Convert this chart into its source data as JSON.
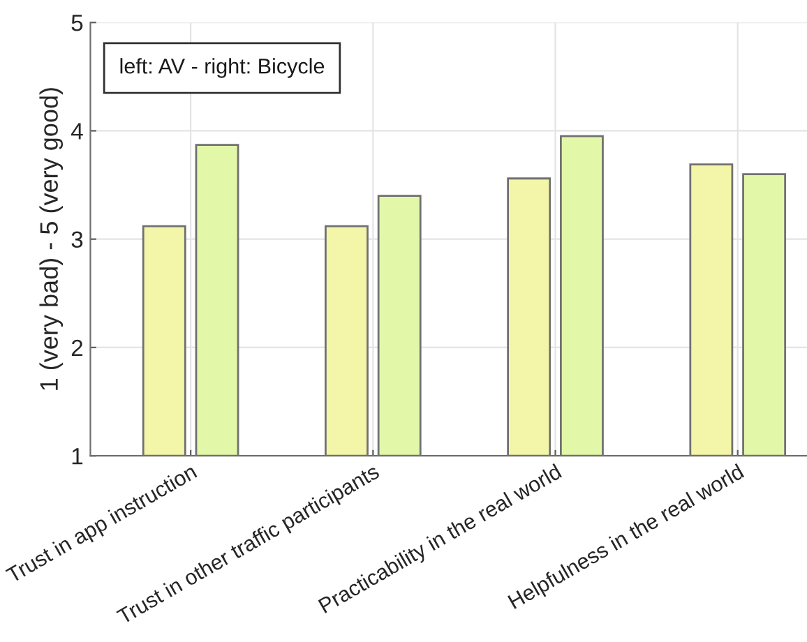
{
  "chart_data": {
    "type": "bar",
    "ylabel": "1 (very bad) - 5 (very good)",
    "annotations": [
      "left: AV - right: Bicycle"
    ],
    "categories": [
      "Trust in app instruction",
      "Trust in other traffic participants",
      "Practicability in the real world",
      "Helpfulness in the real world"
    ],
    "series": [
      {
        "color": "#f3f5a8",
        "values": [
          3.12,
          3.12,
          3.56,
          3.69
        ]
      },
      {
        "color": "#e2f8a8",
        "values": [
          3.87,
          3.4,
          3.95,
          3.6
        ]
      }
    ],
    "ylim": [
      1,
      5
    ],
    "yticks": [
      1,
      2,
      3,
      4,
      5
    ],
    "grid": true
  }
}
